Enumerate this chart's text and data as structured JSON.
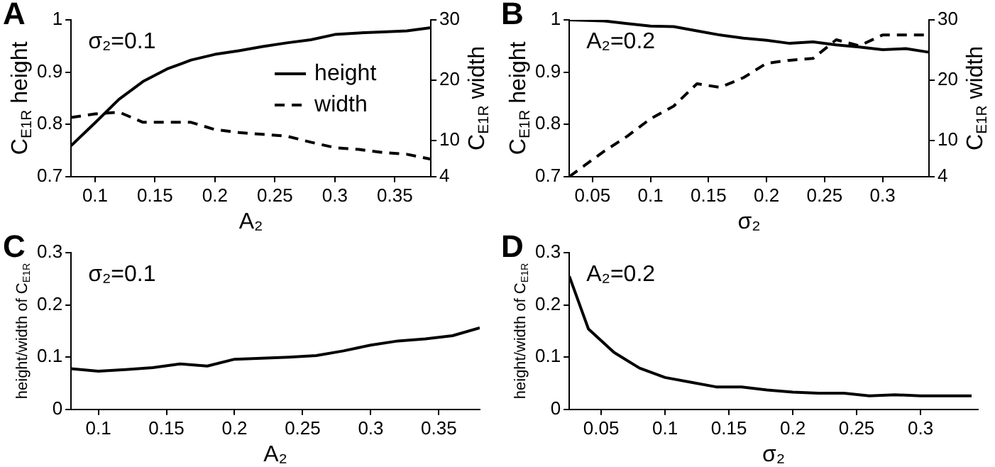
{
  "chart_data": [
    {
      "type": "line",
      "title": "A",
      "xlabel": "A₂",
      "ylabel": "C$_{E1R}$ height",
      "y2label": "C$_{E1R}$ width",
      "annotations": [
        "σ₂=0.1"
      ],
      "legend": "top right",
      "xlim": [
        0.08,
        0.38
      ],
      "xticks": [
        0.1,
        0.15,
        0.2,
        0.25,
        0.3,
        0.35
      ],
      "ylim": [
        0.7,
        1
      ],
      "yticks": [
        0.7,
        0.8,
        0.9,
        1
      ],
      "y2lim": [
        4,
        30
      ],
      "y2ticks": [
        4,
        10,
        20,
        30
      ],
      "series": [
        {
          "name": "height",
          "color": "#000000",
          "line_style": "solid",
          "x": [
            0.08,
            0.1,
            0.12,
            0.14,
            0.16,
            0.18,
            0.2,
            0.22,
            0.24,
            0.26,
            0.28,
            0.3,
            0.32,
            0.34,
            0.36,
            0.38
          ],
          "values": [
            0.759,
            0.803,
            0.848,
            0.882,
            0.906,
            0.923,
            0.934,
            0.941,
            0.949,
            0.956,
            0.962,
            0.972,
            0.975,
            0.977,
            0.979,
            0.985
          ]
        },
        {
          "name": "width",
          "color": "#000000",
          "line_style": "dashed",
          "axis": "y2",
          "x": [
            0.08,
            0.1,
            0.12,
            0.14,
            0.16,
            0.18,
            0.2,
            0.22,
            0.24,
            0.26,
            0.28,
            0.3,
            0.32,
            0.34,
            0.36,
            0.38
          ],
          "values": [
            13.8,
            14.4,
            14.7,
            13.0,
            13.0,
            13.0,
            11.8,
            11.3,
            11.0,
            10.7,
            9.7,
            8.8,
            8.5,
            8.0,
            7.7,
            6.9
          ]
        }
      ]
    },
    {
      "type": "line",
      "title": "B",
      "xlabel": "σ₂",
      "ylabel": "C$_{E1R}$ height",
      "y2label": "C$_{E1R}$ width",
      "annotations": [
        "A₂=0.2"
      ],
      "xlim": [
        0.03,
        0.34
      ],
      "xticks": [
        0.05,
        0.1,
        0.15,
        0.2,
        0.25,
        0.3
      ],
      "ylim": [
        0.7,
        1
      ],
      "yticks": [
        0.7,
        0.8,
        0.9,
        1
      ],
      "y2lim": [
        4,
        30
      ],
      "y2ticks": [
        4,
        10,
        20,
        30
      ],
      "series": [
        {
          "color": "#000000",
          "line_style": "solid",
          "x": [
            0.03,
            0.06,
            0.08,
            0.1,
            0.12,
            0.14,
            0.16,
            0.18,
            0.2,
            0.22,
            0.24,
            0.26,
            0.28,
            0.3,
            0.32,
            0.34
          ],
          "values": [
            1.0,
            0.998,
            0.993,
            0.988,
            0.987,
            0.979,
            0.971,
            0.965,
            0.961,
            0.955,
            0.958,
            0.952,
            0.948,
            0.943,
            0.945,
            0.938
          ]
        },
        {
          "color": "#000000",
          "line_style": "dashed",
          "axis": "y2",
          "x": [
            0.03,
            0.06,
            0.08,
            0.1,
            0.12,
            0.14,
            0.16,
            0.18,
            0.2,
            0.22,
            0.24,
            0.26,
            0.28,
            0.3,
            0.32,
            0.34
          ],
          "values": [
            4.0,
            8.2,
            10.7,
            13.6,
            15.7,
            19.4,
            18.8,
            20.4,
            22.8,
            23.3,
            23.6,
            26.7,
            25.7,
            27.5,
            27.5,
            27.5
          ]
        }
      ]
    },
    {
      "type": "line",
      "title": "C",
      "xlabel": "A₂",
      "ylabel": "height/width of C$_{E1R}$",
      "annotations": [
        "σ₂=0.1"
      ],
      "xlim": [
        0.08,
        0.38
      ],
      "xticks": [
        0.1,
        0.15,
        0.2,
        0.25,
        0.3,
        0.35
      ],
      "ylim": [
        0,
        0.3
      ],
      "yticks": [
        0,
        0.1,
        0.2,
        0.3
      ],
      "series": [
        {
          "color": "#000000",
          "line_style": "solid",
          "x": [
            0.08,
            0.1,
            0.12,
            0.14,
            0.16,
            0.18,
            0.2,
            0.22,
            0.24,
            0.26,
            0.28,
            0.3,
            0.32,
            0.34,
            0.36,
            0.38
          ],
          "values": [
            0.078,
            0.073,
            0.076,
            0.08,
            0.087,
            0.083,
            0.096,
            0.098,
            0.1,
            0.103,
            0.112,
            0.123,
            0.131,
            0.135,
            0.141,
            0.156
          ]
        }
      ]
    },
    {
      "type": "line",
      "title": "D",
      "xlabel": "σ₂",
      "ylabel": "height/width of C$_{E1R}$",
      "annotations": [
        "A₂=0.2"
      ],
      "xlim": [
        0.025,
        0.345
      ],
      "xticks": [
        0.05,
        0.1,
        0.15,
        0.2,
        0.25,
        0.3
      ],
      "ylim": [
        0,
        0.3
      ],
      "yticks": [
        0,
        0.1,
        0.2,
        0.3
      ],
      "series": [
        {
          "color": "#000000",
          "line_style": "solid",
          "x": [
            0.025,
            0.04,
            0.06,
            0.08,
            0.1,
            0.12,
            0.14,
            0.16,
            0.18,
            0.2,
            0.22,
            0.24,
            0.26,
            0.28,
            0.3,
            0.32,
            0.34
          ],
          "values": [
            0.255,
            0.154,
            0.109,
            0.079,
            0.061,
            0.052,
            0.043,
            0.043,
            0.037,
            0.033,
            0.031,
            0.031,
            0.026,
            0.028,
            0.026,
            0.026,
            0.026
          ]
        }
      ]
    }
  ]
}
